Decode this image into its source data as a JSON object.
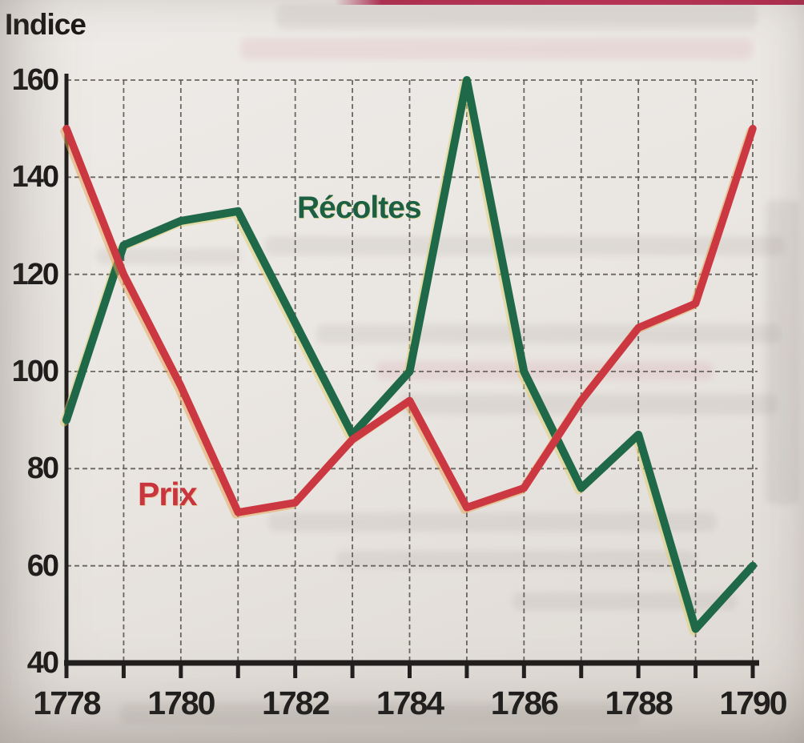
{
  "page": {
    "kind": "scanned textbook line chart",
    "axis_title": "Indice"
  },
  "chart_data": {
    "type": "line",
    "title": "Indice",
    "ylabel": "Indice",
    "xlabel": "",
    "x": [
      1778,
      1779,
      1780,
      1781,
      1782,
      1783,
      1784,
      1785,
      1786,
      1787,
      1788,
      1789,
      1790
    ],
    "x_labeled_ticks": [
      1778,
      1780,
      1782,
      1784,
      1786,
      1788,
      1790
    ],
    "ylim": [
      40,
      160
    ],
    "yticks": [
      40,
      60,
      80,
      100,
      120,
      140,
      160
    ],
    "grid": "dashed vertical line every year, dashed horizontal line every 20 units",
    "legend_position": "inline labels next to lines",
    "axis_color": "#211f1e",
    "grid_color": "#5d5952",
    "series": [
      {
        "name": "Récoltes",
        "color": "#1f6848",
        "print_fringe": "#ddd06a",
        "values": [
          90,
          126,
          131,
          133,
          110,
          87,
          100,
          160,
          100,
          76,
          87,
          47,
          60
        ]
      },
      {
        "name": "Prix",
        "color": "#cc3841",
        "print_fringe": "#e8a24e",
        "values": [
          150,
          120,
          97,
          71,
          73,
          86,
          94,
          72,
          76,
          94,
          109,
          114,
          150
        ]
      }
    ]
  }
}
